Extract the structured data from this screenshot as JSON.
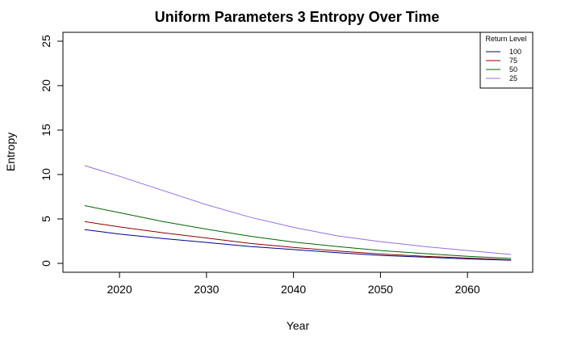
{
  "chart_data": {
    "type": "line",
    "title": "Uniform Parameters 3 Entropy Over Time",
    "xlabel": "Year",
    "ylabel": "Entropy",
    "xlim": [
      2013.5,
      2067.5
    ],
    "ylim": [
      -1,
      26
    ],
    "x_ticks": [
      2020,
      2030,
      2040,
      2050,
      2060
    ],
    "y_ticks": [
      0,
      5,
      10,
      15,
      20,
      25
    ],
    "grid": false,
    "legend": {
      "title": "Return Level",
      "position": "top-right"
    },
    "series": [
      {
        "name": "100",
        "color": "#00008B",
        "x": [
          2016,
          2020,
          2025,
          2030,
          2035,
          2040,
          2045,
          2050,
          2055,
          2060,
          2065
        ],
        "y": [
          3.8,
          3.3,
          2.8,
          2.35,
          1.9,
          1.55,
          1.2,
          0.9,
          0.7,
          0.5,
          0.35
        ]
      },
      {
        "name": "75",
        "color": "#8B0000",
        "x": [
          2016,
          2020,
          2025,
          2030,
          2035,
          2040,
          2045,
          2050,
          2055,
          2060,
          2065
        ],
        "y": [
          4.7,
          4.1,
          3.45,
          2.85,
          2.25,
          1.8,
          1.4,
          1.05,
          0.8,
          0.6,
          0.4
        ]
      },
      {
        "name": "50",
        "color": "#006400",
        "x": [
          2016,
          2020,
          2025,
          2030,
          2035,
          2040,
          2045,
          2050,
          2055,
          2060,
          2065
        ],
        "y": [
          6.5,
          5.7,
          4.7,
          3.85,
          3.05,
          2.4,
          1.9,
          1.45,
          1.1,
          0.8,
          0.55
        ]
      },
      {
        "name": "25",
        "color": "#9370DB",
        "x": [
          2016,
          2020,
          2025,
          2030,
          2035,
          2040,
          2045,
          2050,
          2055,
          2060,
          2065
        ],
        "y": [
          11.0,
          9.8,
          8.2,
          6.6,
          5.2,
          4.05,
          3.1,
          2.45,
          1.9,
          1.45,
          1.0
        ]
      }
    ]
  }
}
